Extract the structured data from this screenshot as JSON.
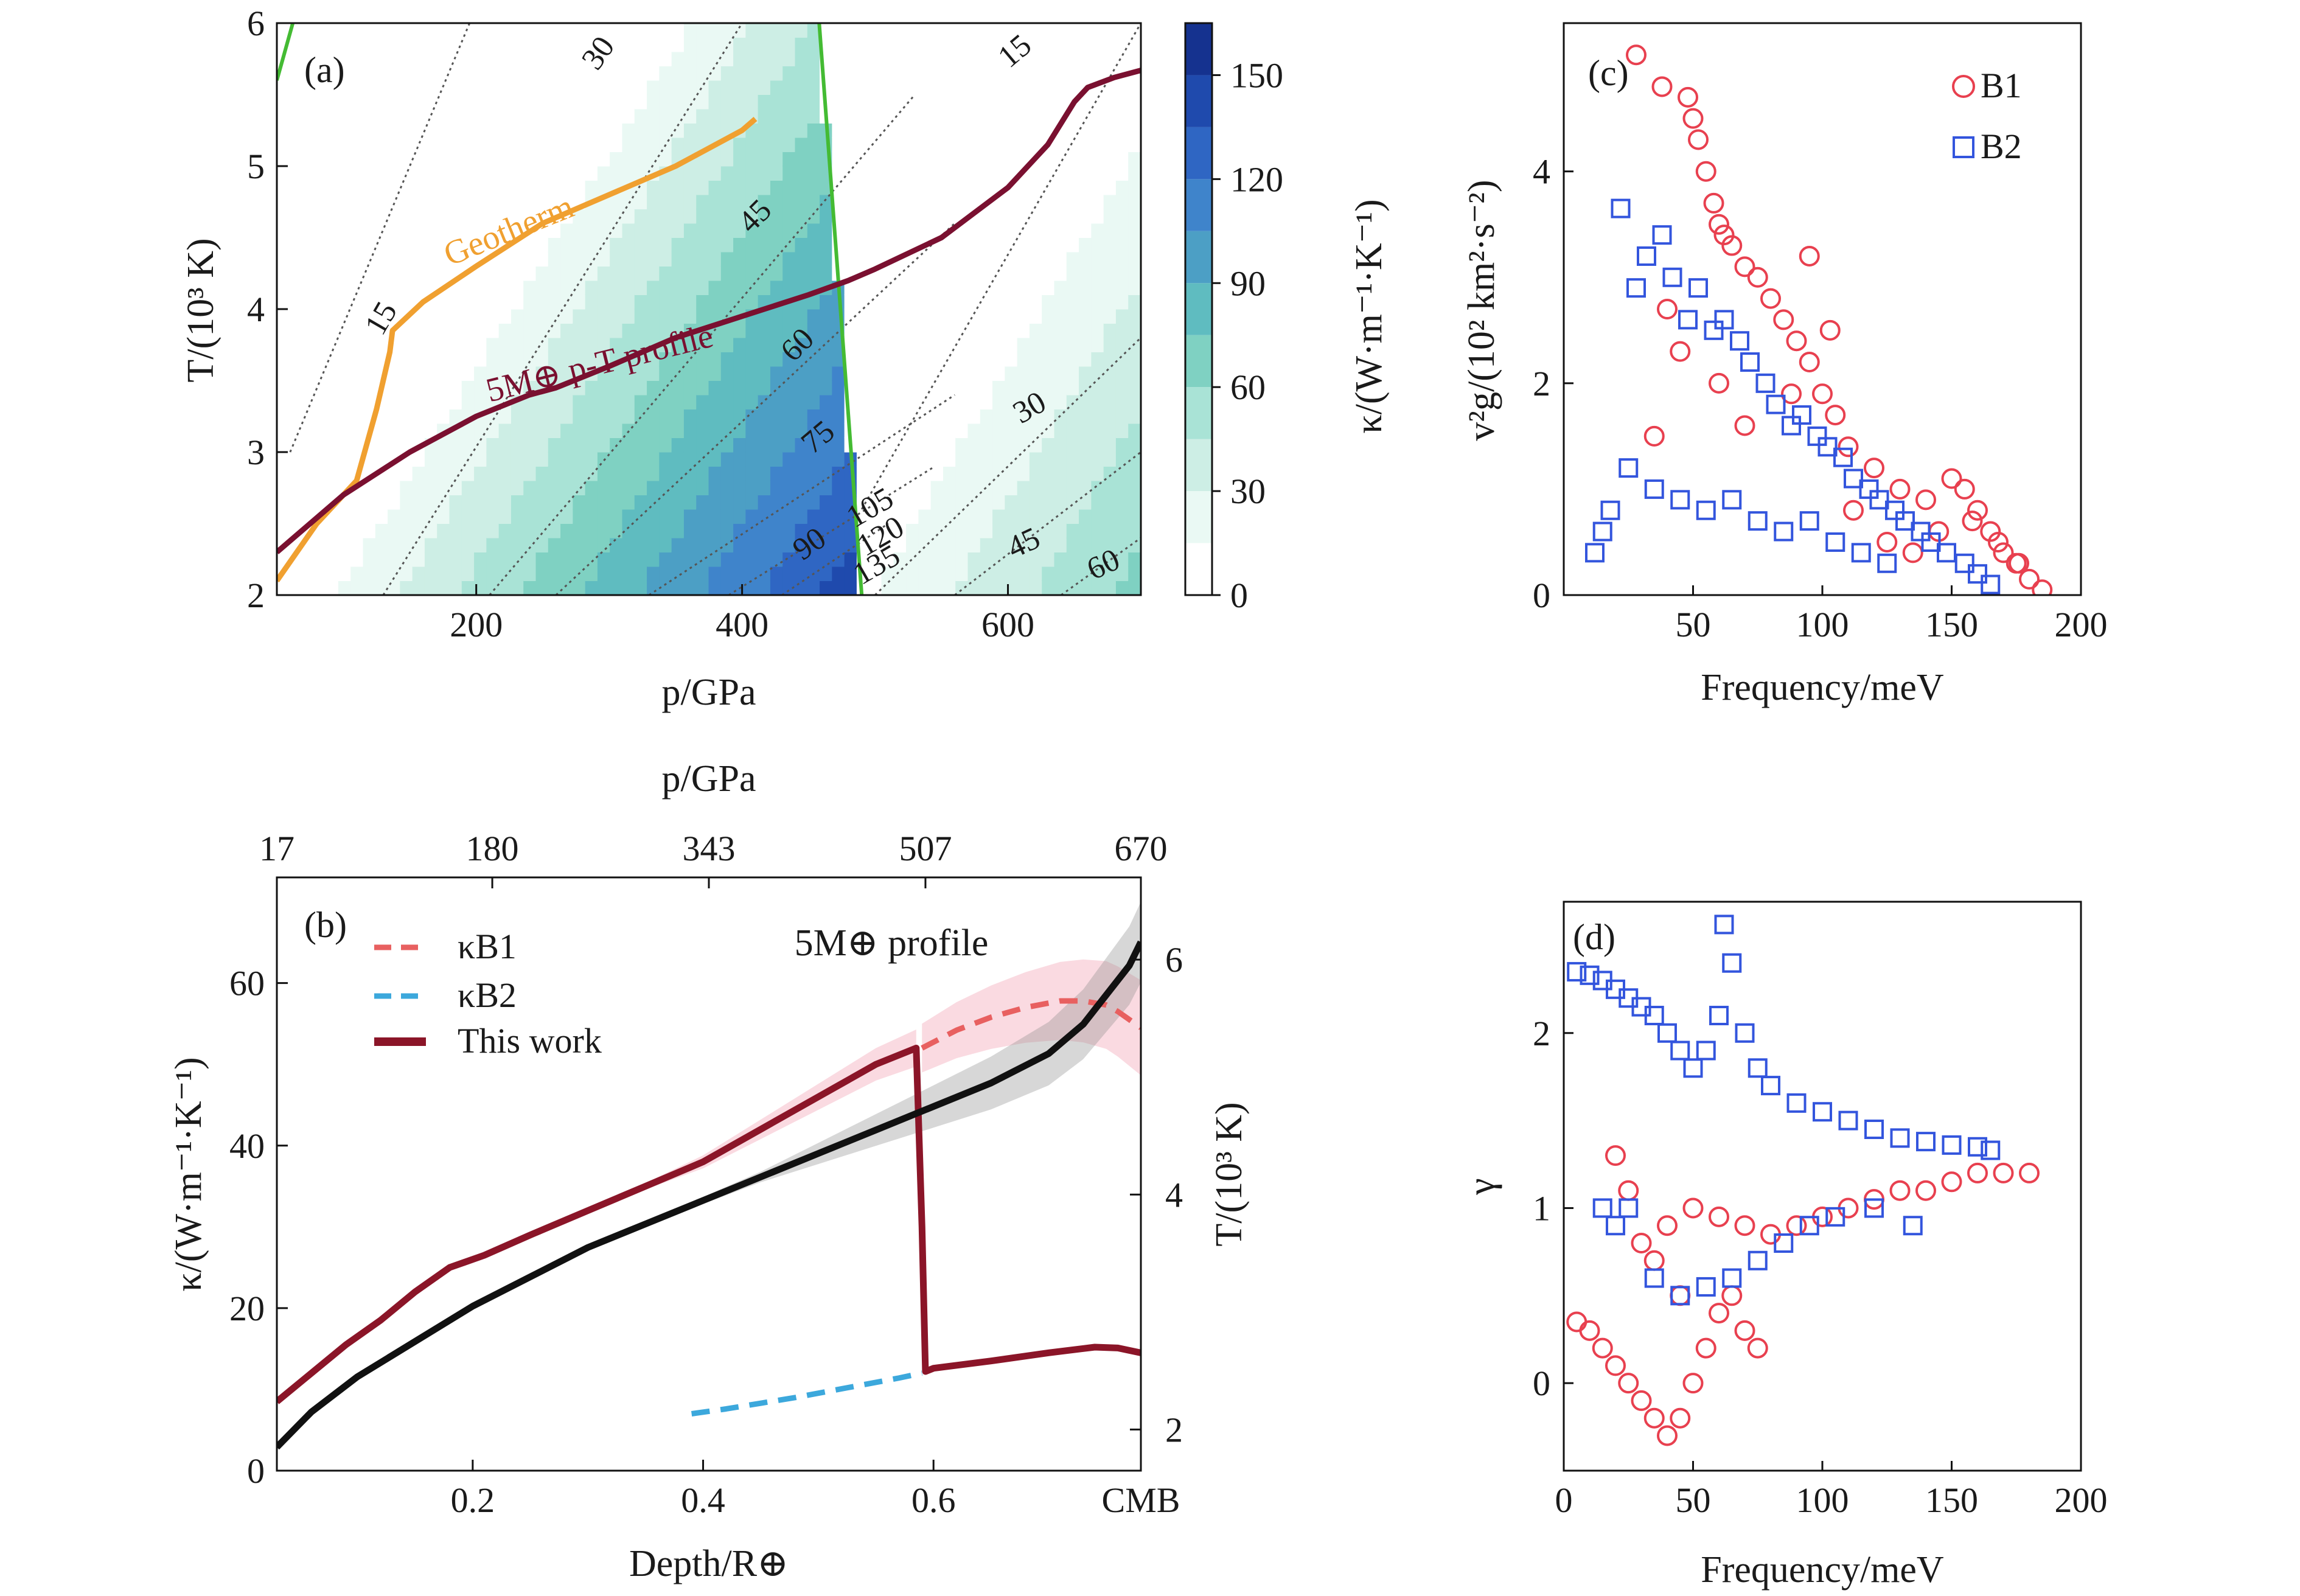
{
  "chart_data": [
    {
      "panel": "(a)",
      "type": "heatmap",
      "xlabel": "p/GPa",
      "ylabel": "T/(10³ K)",
      "xlim": [
        50,
        700
      ],
      "ylim": [
        2,
        6
      ],
      "xticks": [
        200,
        400,
        600
      ],
      "yticks": [
        2,
        3,
        4,
        5,
        6
      ],
      "colorbar": {
        "label": "κ/(W·m⁻¹·K⁻¹)",
        "range": [
          0,
          165
        ],
        "ticks": [
          0,
          30,
          60,
          90,
          120,
          150
        ],
        "colors": [
          "#ffffff",
          "#eaf9f4",
          "#cdeee5",
          "#a9e3d6",
          "#7fd1c2",
          "#5fbcc0",
          "#4c9fc5",
          "#3f84cb",
          "#2f66c3",
          "#1f4aad",
          "#15328f",
          "#0b2070"
        ]
      },
      "phase_boundary_color": "#44bb33",
      "contour_labels": [
        "15",
        "30",
        "45",
        "60",
        "75",
        "90",
        "105",
        "120",
        "135",
        "15",
        "30",
        "45",
        "60"
      ],
      "series": [
        {
          "name": "Geotherm",
          "color": "#f0a030",
          "x": [
            50,
            80,
            110,
            125,
            135,
            137,
            160,
            200,
            250,
            300,
            350,
            400,
            410
          ],
          "y": [
            2.1,
            2.5,
            2.8,
            3.3,
            3.7,
            3.85,
            4.05,
            4.3,
            4.6,
            4.8,
            5.0,
            5.25,
            5.33
          ]
        },
        {
          "name": "5M⊕ p-T profile",
          "color": "#7a1030",
          "x": [
            50,
            100,
            150,
            200,
            240,
            260,
            300,
            350,
            400,
            450,
            480,
            500,
            550,
            600,
            630,
            650,
            660,
            680,
            700
          ],
          "y": [
            2.3,
            2.7,
            3.0,
            3.25,
            3.4,
            3.45,
            3.6,
            3.8,
            3.95,
            4.1,
            4.2,
            4.28,
            4.5,
            4.85,
            5.15,
            5.45,
            5.55,
            5.62,
            5.67
          ]
        }
      ]
    },
    {
      "panel": "(b)",
      "type": "line",
      "title": "5M⊕ profile",
      "xlabel": "Depth/R⊕",
      "ylabel": "κ/(W·m⁻¹·K⁻¹)",
      "y2label": "T/(10³ K)",
      "x2label": "p/GPa",
      "xlim": [
        0.03,
        0.78
      ],
      "ylim": [
        0,
        73
      ],
      "y2lim": [
        1.65,
        6.7
      ],
      "xticks": [
        0.2,
        0.4,
        0.6,
        0.78
      ],
      "xtick_labels": [
        "0.2",
        "0.4",
        "0.6",
        "CMB"
      ],
      "yticks": [
        0,
        20,
        40,
        60
      ],
      "y2ticks": [
        2,
        4,
        6
      ],
      "x2ticks": [
        0.03,
        0.217,
        0.405,
        0.593,
        0.78
      ],
      "x2tick_labels": [
        "17",
        "180",
        "343",
        "507",
        "670"
      ],
      "series": [
        {
          "name": "κB1",
          "style": "dashed",
          "color": "#e86060",
          "x": [
            0.59,
            0.62,
            0.65,
            0.68,
            0.71,
            0.73,
            0.75,
            0.76,
            0.77,
            0.78
          ],
          "y": [
            52,
            54.2,
            55.8,
            57,
            57.8,
            57.8,
            57.3,
            56.5,
            55.5,
            54.5
          ]
        },
        {
          "name": "κB2",
          "style": "dashed",
          "color": "#3ca8dc",
          "x": [
            0.39,
            0.42,
            0.45,
            0.48,
            0.51,
            0.54,
            0.57,
            0.59
          ],
          "y": [
            7,
            7.6,
            8.3,
            9,
            9.8,
            10.6,
            11.4,
            12
          ]
        },
        {
          "name": "This work",
          "style": "solid",
          "color": "#8b1528",
          "x": [
            0.03,
            0.06,
            0.09,
            0.12,
            0.15,
            0.18,
            0.21,
            0.25,
            0.3,
            0.35,
            0.4,
            0.45,
            0.5,
            0.55,
            0.585,
            0.59,
            0.593,
            0.6,
            0.65,
            0.7,
            0.74,
            0.76,
            0.78
          ],
          "y": [
            8.5,
            12,
            15.5,
            18.5,
            22,
            25,
            26.5,
            29,
            32,
            35,
            38,
            42,
            46,
            50,
            52,
            30,
            12.2,
            12.6,
            13.5,
            14.5,
            15.2,
            15.1,
            14.5
          ]
        },
        {
          "name": "T profile",
          "style": "solid",
          "axis": "right",
          "color": "#111111",
          "x": [
            0.03,
            0.06,
            0.1,
            0.15,
            0.2,
            0.25,
            0.3,
            0.35,
            0.4,
            0.45,
            0.5,
            0.55,
            0.6,
            0.65,
            0.7,
            0.73,
            0.75,
            0.77,
            0.78
          ],
          "y": [
            1.85,
            2.15,
            2.45,
            2.75,
            3.05,
            3.3,
            3.55,
            3.75,
            3.95,
            4.15,
            4.35,
            4.55,
            4.75,
            4.95,
            5.2,
            5.45,
            5.7,
            5.95,
            6.15
          ]
        }
      ],
      "legend": [
        "κB1",
        "κB2",
        "This work"
      ]
    },
    {
      "panel": "(c)",
      "type": "scatter",
      "xlabel": "Frequency/meV",
      "ylabel": "v²g/(10² km²·s⁻²)",
      "xlim": [
        0,
        200
      ],
      "ylim": [
        0,
        5.4
      ],
      "xticks": [
        50,
        100,
        150,
        200
      ],
      "yticks": [
        0,
        2,
        4
      ],
      "series": [
        {
          "name": "B1",
          "marker": "circle",
          "color": "#e8404f",
          "x": [
            28,
            38,
            48,
            50,
            52,
            55,
            58,
            60,
            62,
            65,
            70,
            75,
            80,
            85,
            90,
            95,
            100,
            105,
            110,
            120,
            130,
            140,
            150,
            155,
            160,
            165,
            170,
            175,
            180,
            185,
            40,
            45,
            35,
            60,
            70,
            88,
            95,
            103,
            112,
            125,
            135,
            145,
            158,
            168,
            176
          ],
          "y": [
            5.1,
            4.8,
            4.7,
            4.5,
            4.3,
            4.0,
            3.7,
            3.5,
            3.4,
            3.3,
            3.1,
            3.0,
            2.8,
            2.6,
            2.4,
            2.2,
            1.9,
            1.7,
            1.4,
            1.2,
            1.0,
            0.9,
            1.1,
            1.0,
            0.8,
            0.6,
            0.4,
            0.3,
            0.15,
            0.05,
            2.7,
            2.3,
            1.5,
            2.0,
            1.6,
            1.9,
            3.2,
            2.5,
            0.8,
            0.5,
            0.4,
            0.6,
            0.7,
            0.5,
            0.3
          ]
        },
        {
          "name": "B2",
          "marker": "square",
          "color": "#3355dd",
          "x": [
            22,
            28,
            32,
            38,
            42,
            48,
            52,
            58,
            62,
            68,
            72,
            78,
            82,
            88,
            92,
            98,
            102,
            108,
            112,
            118,
            122,
            128,
            132,
            138,
            142,
            148,
            155,
            160,
            165,
            12,
            15,
            18,
            25,
            35,
            45,
            55,
            65,
            75,
            85,
            95,
            105,
            115,
            125
          ],
          "y": [
            3.65,
            2.9,
            3.2,
            3.4,
            3.0,
            2.6,
            2.9,
            2.5,
            2.6,
            2.4,
            2.2,
            2.0,
            1.8,
            1.6,
            1.7,
            1.5,
            1.4,
            1.3,
            1.1,
            1.0,
            0.9,
            0.8,
            0.7,
            0.6,
            0.5,
            0.4,
            0.3,
            0.2,
            0.1,
            0.4,
            0.6,
            0.8,
            1.2,
            1.0,
            0.9,
            0.8,
            0.9,
            0.7,
            0.6,
            0.7,
            0.5,
            0.4,
            0.3
          ]
        }
      ],
      "legend": [
        "B1",
        "B2"
      ]
    },
    {
      "panel": "(d)",
      "type": "scatter",
      "xlabel": "Frequency/meV",
      "ylabel": "γ",
      "xlim": [
        0,
        200
      ],
      "ylim": [
        -0.5,
        2.75
      ],
      "xticks": [
        0,
        50,
        100,
        150,
        200
      ],
      "yticks": [
        0,
        1,
        2
      ],
      "series": [
        {
          "name": "B1",
          "marker": "circle",
          "color": "#e8404f",
          "x": [
            5,
            10,
            15,
            20,
            25,
            30,
            35,
            40,
            45,
            50,
            55,
            60,
            65,
            70,
            75,
            30,
            40,
            50,
            60,
            70,
            80,
            90,
            100,
            110,
            120,
            130,
            140,
            150,
            160,
            170,
            180,
            20,
            25,
            35,
            45
          ],
          "y": [
            0.35,
            0.3,
            0.2,
            0.1,
            0.0,
            -0.1,
            -0.2,
            -0.3,
            -0.2,
            0.0,
            0.2,
            0.4,
            0.5,
            0.3,
            0.2,
            0.8,
            0.9,
            1.0,
            0.95,
            0.9,
            0.85,
            0.9,
            0.95,
            1.0,
            1.05,
            1.1,
            1.1,
            1.15,
            1.2,
            1.2,
            1.2,
            1.3,
            1.1,
            0.7,
            0.5
          ]
        },
        {
          "name": "B2",
          "marker": "square",
          "color": "#3355dd",
          "x": [
            5,
            10,
            15,
            20,
            25,
            30,
            35,
            40,
            45,
            50,
            55,
            60,
            62,
            65,
            70,
            75,
            80,
            90,
            100,
            110,
            120,
            130,
            140,
            150,
            160,
            165,
            15,
            20,
            25,
            35,
            45,
            55,
            65,
            75,
            85,
            95,
            105,
            120,
            135
          ],
          "y": [
            2.35,
            2.33,
            2.3,
            2.25,
            2.2,
            2.15,
            2.1,
            2.0,
            1.9,
            1.8,
            1.9,
            2.1,
            2.62,
            2.4,
            2.0,
            1.8,
            1.7,
            1.6,
            1.55,
            1.5,
            1.45,
            1.4,
            1.38,
            1.36,
            1.35,
            1.33,
            1.0,
            0.9,
            1.0,
            0.6,
            0.5,
            0.55,
            0.6,
            0.7,
            0.8,
            0.9,
            0.95,
            1.0,
            0.9
          ]
        }
      ]
    }
  ]
}
